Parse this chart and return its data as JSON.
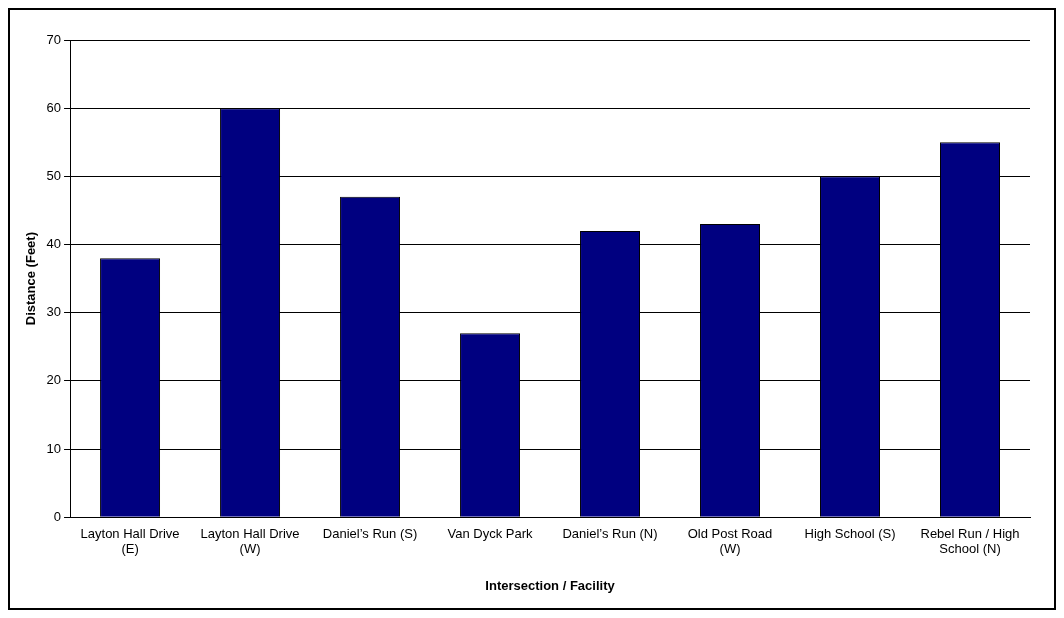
{
  "chart_data": {
    "type": "bar",
    "xlabel": "Intersection / Facility",
    "ylabel": "Distance (Feet)",
    "categories": [
      "Layton Hall Drive (E)",
      "Layton Hall Drive (W)",
      "Daniel’s Run (S)",
      "Van Dyck Park",
      "Daniel’s Run (N)",
      "Old Post Road (W)",
      "High School (S)",
      "Rebel Run / High School (N)"
    ],
    "values": [
      38,
      60,
      47,
      27,
      42,
      43,
      50,
      55
    ],
    "color": "#000080",
    "ylim": [
      0,
      70
    ],
    "yticks": [
      0,
      10,
      20,
      30,
      40,
      50,
      60,
      70
    ],
    "grid": "y",
    "legend": false
  }
}
